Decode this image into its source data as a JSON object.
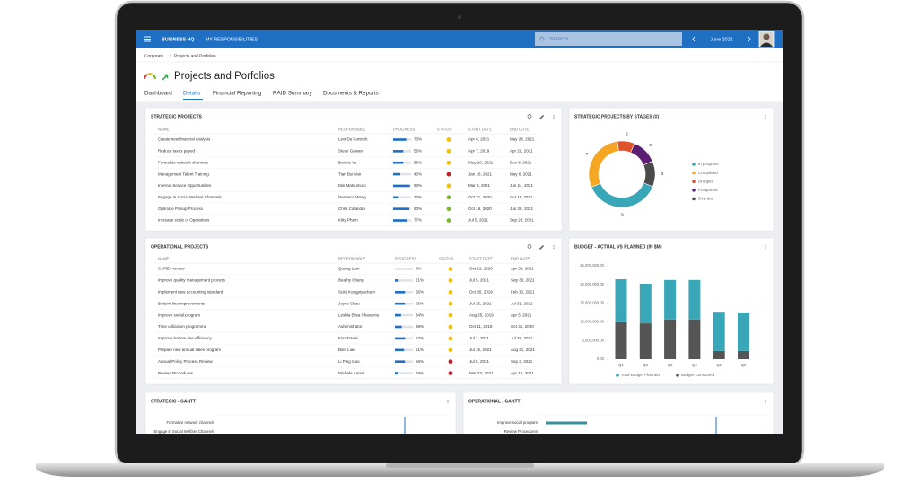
{
  "topbar": {
    "brand": "BUSINESS HQ",
    "nav": "MY RESPONSIBILITIES",
    "search_placeholder": "SEARCH",
    "period": "June 2021"
  },
  "breadcrumb": [
    "Corporate",
    "Projects and Porfolios"
  ],
  "page_title": "Projects and Porfolios",
  "tabs": [
    "Dashboard",
    "Details",
    "Financial Reporting",
    "RAID Summary",
    "Documents & Reports"
  ],
  "active_tab": 1,
  "strategic_projects": {
    "title": "STRATEGIC PROJECTS",
    "columns": [
      "NAME",
      "RESPONSIBLE",
      "PROGRESS",
      "STATUS",
      "START DATE",
      "END DATE"
    ],
    "rows": [
      {
        "name": "Create new financial analysis",
        "responsible": "Levi De Koninck",
        "progress": {
          "value": 73,
          "label": "73%"
        },
        "status": "#f2c200",
        "start": "Apr 6, 2021",
        "end": "May 24, 2021"
      },
      {
        "name": "Reduce taxes payed",
        "responsible": "Steve Gaivan",
        "progress": {
          "value": 56,
          "label": "56%"
        },
        "status": "#f2c200",
        "start": "Apr 7, 2019",
        "end": "Apr 29, 2021"
      },
      {
        "name": "Formalize network channels",
        "responsible": "Bonnie Ye",
        "progress": {
          "value": 56,
          "label": "56%"
        },
        "status": "#f2c200",
        "start": "May 10, 2021",
        "end": "Dec 8, 2021"
      },
      {
        "name": "Management Talent Training",
        "responsible": "Tian Bui Van",
        "progress": {
          "value": 40,
          "label": "40%"
        },
        "status": "#c0202a",
        "start": "Jan 18, 2021",
        "end": "May 6, 2021"
      },
      {
        "name": "Internal Service Opportunities",
        "responsible": "Min Matsumoto",
        "progress": {
          "value": 93,
          "label": "93%"
        },
        "status": "#f2c200",
        "start": "Mar 8, 2021",
        "end": "Jun 24, 2021"
      },
      {
        "name": "Engage in Social Welfare Channels",
        "responsible": "lawrence Wang",
        "progress": {
          "value": 32,
          "label": "32%"
        },
        "status": "#7cb82f",
        "start": "Oct 21, 2020",
        "end": "Oct 11, 2021"
      },
      {
        "name": "Optimize Pickup Process",
        "responsible": "Chris Calandro",
        "progress": {
          "value": 90,
          "label": "90%"
        },
        "status": "#7cb82f",
        "start": "Oct 16, 2020",
        "end": "Jun 28, 2021"
      },
      {
        "name": "Increase scale of Operations",
        "responsible": "Kitty Pham",
        "progress": {
          "value": 77,
          "label": "77%"
        },
        "status": "#7cb82f",
        "start": "Jul 5, 2021",
        "end": "Sep 28, 2021"
      }
    ]
  },
  "operational_projects": {
    "title": "OPERATIONAL PROJECTS",
    "columns": [
      "NAME",
      "RESPONSIBLE",
      "PROGRESS",
      "STATUS",
      "START DATE",
      "END DATE"
    ],
    "rows": [
      {
        "name": "CAPEX review",
        "responsible": "Quang Lam",
        "progress": {
          "value": 0,
          "label": "0%"
        },
        "status": "#f2c200",
        "start": "Oct 12, 2020",
        "end": "Apr 28, 2021"
      },
      {
        "name": "Improve quality management process",
        "responsible": "Beathy Chang",
        "progress": {
          "value": 21,
          "label": "21%"
        },
        "status": "#f2c200",
        "start": "Jul 5, 2021",
        "end": "Sep 30, 2021"
      },
      {
        "name": "Implement new accounting standard",
        "responsible": "Sukij Kongpiyacharn",
        "progress": {
          "value": 56,
          "label": "56%"
        },
        "status": "#f2c200",
        "start": "Oct 30, 2019",
        "end": "Feb 10, 2021"
      },
      {
        "name": "Bottom-line improvements",
        "responsible": "Joyce Chau",
        "progress": {
          "value": 55,
          "label": "55%"
        },
        "status": "#f2c200",
        "start": "Jul 15, 2021",
        "end": "Jul 31, 2021"
      },
      {
        "name": "Improve social program",
        "responsible": "Lesbia Elisa Chavarria",
        "progress": {
          "value": 34,
          "label": "34%"
        },
        "status": "#f2c200",
        "start": "Aug 25, 2019",
        "end": "Apr 5, 2021"
      },
      {
        "name": "Time utilization programme",
        "responsible": "Administrator",
        "progress": {
          "value": 38,
          "label": "38%"
        },
        "status": "#f2c200",
        "start": "Oct 11, 2019",
        "end": "Oct 31, 2020"
      },
      {
        "name": "Improve bottom-line efficiency",
        "responsible": "Kim Tranel",
        "progress": {
          "value": 57,
          "label": "57%"
        },
        "status": "#f2c200",
        "start": "Jul 2, 2021",
        "end": "Jul 29, 2021"
      },
      {
        "name": "Prepare new annual sales program",
        "responsible": "Bien Liao",
        "progress": {
          "value": 51,
          "label": "51%"
        },
        "status": "#f2c200",
        "start": "Jul 15, 2021",
        "end": "Aug 31, 2021"
      },
      {
        "name": "Annual Policy Process Review",
        "responsible": "Li Ping Gao",
        "progress": {
          "value": 56,
          "label": "56%"
        },
        "status": "#c0202a",
        "start": "Jul 5, 2021",
        "end": "Sep 3, 2021"
      },
      {
        "name": "Review Procedures",
        "responsible": "Michele Kaiser",
        "progress": {
          "value": 19,
          "label": "19%"
        },
        "status": "#c0202a",
        "start": "Mar 23, 2021",
        "end": "Apr 12, 2021"
      }
    ]
  },
  "chart_data": [
    {
      "type": "pie",
      "title": "STRATEGIC PROJECTS BY STAGES (#)",
      "categories": [
        "In progress",
        "Completed",
        "Dropped",
        "Postponed",
        "Overdue"
      ],
      "values": [
        9,
        7,
        2,
        3,
        3
      ],
      "colors": [
        "#3aa7b8",
        "#f5a623",
        "#e0522b",
        "#5b1e72",
        "#4a4a4a"
      ]
    },
    {
      "type": "bar",
      "stacked": true,
      "title": "BUDGET - ACTUAL VS PLANNED (IN $M)",
      "categories": [
        "Q1",
        "Q2",
        "Q3",
        "Q4",
        "Q1",
        "Q2"
      ],
      "series": [
        {
          "name": "Total Budget Planned",
          "color": "#3aa7b8",
          "values": [
            11500000,
            10600000,
            10600000,
            10600000,
            10500000,
            10300000
          ]
        },
        {
          "name": "Budget Consumed",
          "color": "#555555",
          "values": [
            9900000,
            9600000,
            10600000,
            10600000,
            2200000,
            2200000
          ]
        }
      ],
      "ylim": [
        0,
        25000000
      ],
      "yticks": [
        {
          "value": 0,
          "label": "0.00"
        },
        {
          "value": 5000000,
          "label": "5,000,000.00"
        },
        {
          "value": 10000000,
          "label": "10,000,000.00"
        },
        {
          "value": 15000000,
          "label": "15,000,000.00"
        },
        {
          "value": 20000000,
          "label": "20,000,000.00"
        },
        {
          "value": 25000000,
          "label": "25,000,000.00"
        }
      ]
    }
  ],
  "gantt": [
    {
      "title": "STRATEGIC - GANTT",
      "tasks": [
        "Formalize network channels",
        "Engage in Social Welfare Channels"
      ]
    },
    {
      "title": "OPERATIONAL - GANTT",
      "tasks": [
        "Improve social program",
        "Review Procedures"
      ]
    }
  ]
}
